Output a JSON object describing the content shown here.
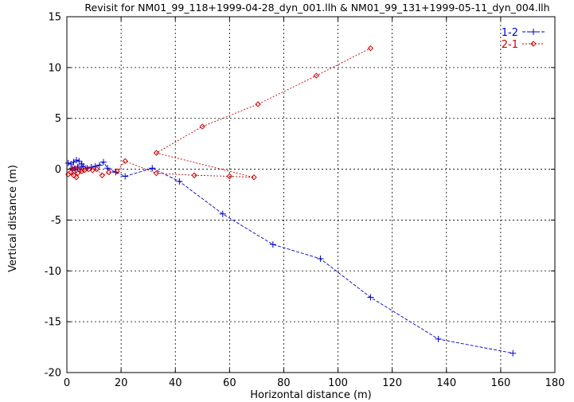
{
  "chart_data": {
    "type": "line",
    "title": "Revisit for NM01_99_118+1999-04-28_dyn_001.llh & NM01_99_131+1999-05-11_dyn_004.llh",
    "xlabel": "Horizontal distance (m)",
    "ylabel": "Vertical distance (m)",
    "xlim": [
      0,
      180
    ],
    "ylim": [
      -20,
      15
    ],
    "xticks": [
      0,
      20,
      40,
      60,
      80,
      100,
      120,
      140,
      160,
      180
    ],
    "yticks": [
      -20,
      -15,
      -10,
      -5,
      0,
      5,
      10,
      15
    ],
    "grid": true,
    "legend_position": "top-right",
    "series": [
      {
        "name": "1-2",
        "color": "#0000cc",
        "marker": "plus",
        "points": [
          [
            0.5,
            0.6
          ],
          [
            1.5,
            0.5
          ],
          [
            2.5,
            0.7
          ],
          [
            3.5,
            0.9
          ],
          [
            4.5,
            0.8
          ],
          [
            5.5,
            0.5
          ],
          [
            2.0,
            0.1
          ],
          [
            3.0,
            -0.1
          ],
          [
            4.0,
            0.2
          ],
          [
            5.0,
            0.0
          ],
          [
            6.0,
            0.3
          ],
          [
            7.5,
            0.1
          ],
          [
            9.0,
            0.2
          ],
          [
            10.5,
            0.3
          ],
          [
            12.0,
            0.4
          ],
          [
            13.5,
            0.7
          ],
          [
            15.0,
            0.1
          ],
          [
            18.0,
            -0.3
          ],
          [
            21.5,
            -0.7
          ],
          [
            31.5,
            0.1
          ],
          [
            41.5,
            -1.2
          ],
          [
            57.5,
            -4.4
          ],
          [
            76.0,
            -7.4
          ],
          [
            93.5,
            -8.8
          ],
          [
            112.0,
            -12.6
          ],
          [
            137.0,
            -16.7
          ],
          [
            164.5,
            -18.1
          ]
        ]
      },
      {
        "name": "2-1",
        "color": "#cc0000",
        "marker": "diamond",
        "points": [
          [
            0.5,
            -0.5
          ],
          [
            1.5,
            -0.3
          ],
          [
            2.5,
            -0.6
          ],
          [
            3.5,
            -0.8
          ],
          [
            4.0,
            -0.4
          ],
          [
            2.0,
            0.0
          ],
          [
            3.0,
            0.1
          ],
          [
            4.5,
            0.0
          ],
          [
            5.5,
            -0.2
          ],
          [
            6.5,
            -0.1
          ],
          [
            8.0,
            0.0
          ],
          [
            9.5,
            -0.1
          ],
          [
            11.0,
            0.0
          ],
          [
            13.0,
            -0.6
          ],
          [
            15.5,
            -0.3
          ],
          [
            18.5,
            -0.2
          ],
          [
            21.5,
            0.8
          ],
          [
            33.0,
            -0.4
          ],
          [
            47.0,
            -0.6
          ],
          [
            60.0,
            -0.7
          ],
          [
            69.0,
            -0.8
          ],
          [
            33.0,
            1.6
          ],
          [
            50.0,
            4.2
          ],
          [
            70.5,
            6.4
          ],
          [
            92.0,
            9.2
          ],
          [
            112.0,
            11.9
          ]
        ]
      }
    ]
  }
}
